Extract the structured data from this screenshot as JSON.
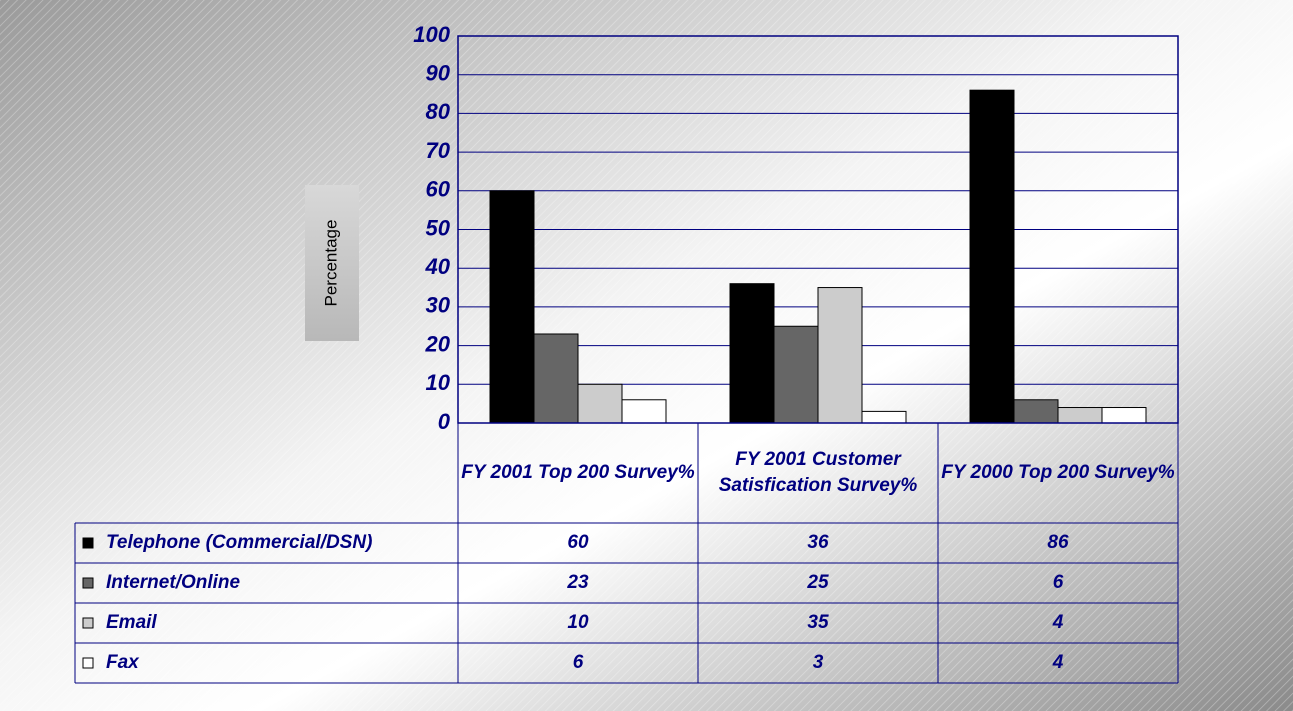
{
  "chart_data": {
    "type": "bar",
    "y_axis_label": "Percentage",
    "categories": [
      "FY 2001 Top 200 Survey%",
      "FY 2001 Customer Satisfication Survey%",
      "FY 2000 Top 200 Survey%"
    ],
    "series": [
      {
        "name": "Telephone (Commercial/DSN)",
        "color": "#000000",
        "values": [
          60,
          36,
          86
        ]
      },
      {
        "name": "Internet/Online",
        "color": "#666666",
        "values": [
          23,
          25,
          6
        ]
      },
      {
        "name": "Email",
        "color": "#cccccc",
        "values": [
          10,
          35,
          4
        ]
      },
      {
        "name": "Fax",
        "color": "#ffffff",
        "values": [
          6,
          3,
          4
        ]
      }
    ],
    "ylim": [
      0,
      100
    ],
    "yticks": [
      0,
      10,
      20,
      30,
      40,
      50,
      60,
      70,
      80,
      90,
      100
    ],
    "grid": true,
    "data_table": true
  }
}
